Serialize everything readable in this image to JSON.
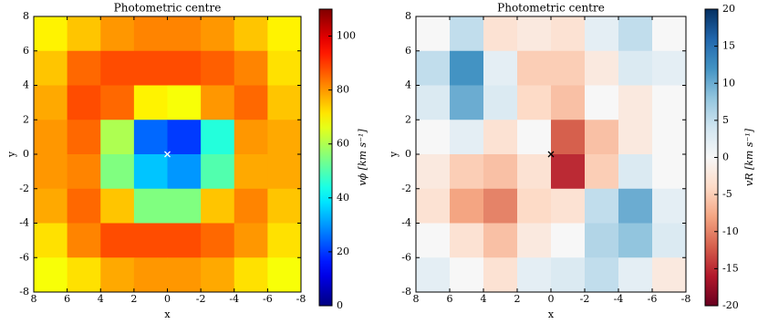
{
  "chart_data": [
    {
      "type": "heatmap",
      "title": "Photometric centre",
      "xlabel": "x",
      "ylabel": "y",
      "x": [
        7,
        5,
        3,
        1,
        -1,
        -3,
        -5,
        -7
      ],
      "y": [
        7,
        5,
        3,
        1,
        -1,
        -3,
        -5,
        -7
      ],
      "values": [
        [
          70,
          75,
          80,
          82,
          82,
          80,
          75,
          70
        ],
        [
          75,
          85,
          88,
          88,
          88,
          86,
          82,
          72
        ],
        [
          78,
          88,
          85,
          70,
          68,
          80,
          85,
          75
        ],
        [
          80,
          85,
          60,
          25,
          20,
          45,
          80,
          78
        ],
        [
          80,
          82,
          55,
          35,
          30,
          50,
          78,
          78
        ],
        [
          78,
          85,
          75,
          55,
          55,
          75,
          82,
          75
        ],
        [
          72,
          82,
          88,
          88,
          88,
          85,
          80,
          72
        ],
        [
          68,
          72,
          78,
          80,
          80,
          78,
          72,
          68
        ]
      ],
      "xlim": [
        8,
        -8
      ],
      "ylim": [
        -8,
        8
      ],
      "xticks": [
        8,
        6,
        4,
        2,
        0,
        -2,
        -4,
        -6,
        -8
      ],
      "yticks": [
        -8,
        -6,
        -4,
        -2,
        0,
        2,
        4,
        6,
        8
      ],
      "colormap": "jet",
      "clim": [
        0,
        110
      ],
      "cticks": [
        0,
        20,
        40,
        60,
        80,
        100
      ],
      "clabel": "vϕ [km s⁻¹]",
      "marker": {
        "x": 0,
        "y": 0,
        "color": "#ffffff"
      }
    },
    {
      "type": "heatmap",
      "title": "Photometric centre",
      "xlabel": "x",
      "ylabel": "y",
      "x": [
        7,
        5,
        3,
        1,
        -1,
        -3,
        -5,
        -7
      ],
      "y": [
        7,
        5,
        3,
        1,
        -1,
        -3,
        -5,
        -7
      ],
      "values": [
        [
          0,
          5,
          -3,
          -2,
          -3,
          2,
          5,
          0
        ],
        [
          5,
          12,
          2,
          -5,
          -5,
          -2,
          3,
          2
        ],
        [
          3,
          10,
          3,
          -4,
          -6,
          0,
          -2,
          0
        ],
        [
          0,
          2,
          -3,
          0,
          -12,
          -6,
          -2,
          0
        ],
        [
          -2,
          -5,
          -6,
          -3,
          -15,
          -5,
          3,
          0
        ],
        [
          -3,
          -8,
          -10,
          -4,
          -3,
          5,
          10,
          2
        ],
        [
          0,
          -3,
          -6,
          -2,
          0,
          6,
          8,
          3
        ],
        [
          2,
          0,
          -3,
          2,
          3,
          5,
          2,
          -2
        ]
      ],
      "xlim": [
        8,
        -8
      ],
      "ylim": [
        -8,
        8
      ],
      "xticks": [
        8,
        6,
        4,
        2,
        0,
        -2,
        -4,
        -6,
        -8
      ],
      "yticks": [
        -8,
        -6,
        -4,
        -2,
        0,
        2,
        4,
        6,
        8
      ],
      "colormap": "RdBu",
      "clim": [
        -20,
        20
      ],
      "cticks": [
        -20,
        -15,
        -10,
        -5,
        0,
        5,
        10,
        15,
        20
      ],
      "clabel": "vR [km s⁻¹]",
      "marker": {
        "x": 0,
        "y": 0,
        "color": "#000000"
      }
    }
  ]
}
